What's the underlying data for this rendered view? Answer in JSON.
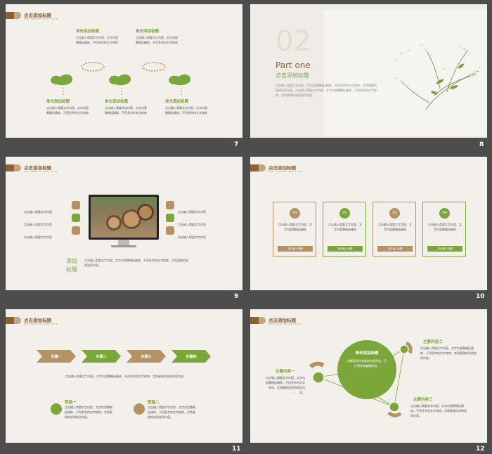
{
  "header": {
    "title": "点击添加标题",
    "subtitle": "ADD YOUR TO ADD TITLE"
  },
  "slide7": {
    "num": "7",
    "items": [
      {
        "title": "单击添加标题",
        "text": "点击输入简要文字内容，文字内容需概括精炼，不用多余的文字修饰"
      },
      {
        "title": "单击添加标题",
        "text": "点击输入简要文字内容，文字内容需概括精炼，不用多余的文字修饰"
      },
      {
        "title": "单击添加标题",
        "text": "点击输入简要文字内容，文字内容需概括精炼，不用多余的文字修饰"
      },
      {
        "title": "单击添加标题",
        "text": "点击输入简要文字内容，文字内容需概括精炼，不用多余的文字修饰"
      },
      {
        "title": "单击添加标题",
        "text": "点击输入简要文字内容，文字内容需概括精炼，不用多余的文字修饰"
      }
    ]
  },
  "slide8": {
    "num": "8",
    "big": "02",
    "part": "Part one",
    "title": "点击添加标题",
    "text": "点击输入简要文字内容，文字内容需概括精炼，不用多余的文字修饰，言简意赅的说明该项内容。点击输入简要文字内容，文字内容需概括精炼，不用多余的文字修饰，言简意赅的说明该项内容。"
  },
  "slide9": {
    "num": "9",
    "left": [
      "点击输入简要文字内容",
      "点击输入简要文字内容",
      "点击输入简要文字内容"
    ],
    "right": [
      "点击输入简要文字内容",
      "点击输入简要文字内容",
      "点击输入简要文字内容"
    ],
    "title1": "添加",
    "title2": "标题",
    "text": "点击输入简要文字内容，文字内容需概括精炼，不用多余的文字修饰，言简意赅的说明该项内容。"
  },
  "slide10": {
    "num": "10",
    "cards": [
      {
        "n": "01",
        "text": "点击输入简要文字内容，文字内容需概括精炼",
        "btn": "单击输入标题"
      },
      {
        "n": "02",
        "text": "点击输入简要文字内容，文字内容需概括精炼",
        "btn": "单击输入标题"
      },
      {
        "n": "03",
        "text": "点击输入简要文字内容，文字内容需概括精炼",
        "btn": "单击输入标题"
      },
      {
        "n": "04",
        "text": "点击输入简要文字内容，文字内容需概括精炼",
        "btn": "单击输入标题"
      }
    ]
  },
  "slide11": {
    "num": "11",
    "steps": [
      "步骤一",
      "步骤二",
      "步骤三",
      "步骤四"
    ],
    "text": "点击输入简要文字内容，文字内容需概括精炼，不用多余的文字修饰，言简意赅的说明该项内容。",
    "items": [
      {
        "title": "思路一",
        "text": "点击输入简要文字内容，文字内容需概括精炼，不用多余的文字修饰，言简意赅的说明该项内容。"
      },
      {
        "title": "思路二",
        "text": "点击输入简要文字内容，文字内容需概括精炼，不用多余的文字修饰，言简意赅的说明该项内容。"
      }
    ]
  },
  "slide12": {
    "num": "12",
    "center_title": "单击添加标题",
    "center_text": "本模板的所有素材均是原创，可任意修改编辑使用。",
    "items": [
      {
        "title": "主要内容一",
        "text": "点击输入简要文字内容，文字内容需概括精炼，不用多余的文字修饰，言简意赅的说明该项内容。"
      },
      {
        "title": "主要内容二",
        "text": "点击输入简要文字内容，文字内容需概括精炼，不用多余的文字修饰，言简意赅的说明该项内容。"
      },
      {
        "title": "主要内容三",
        "text": "点击输入简要文字内容，文字内容需概括精炼，不用多余的文字修饰，言简意赅的说明该项内容。"
      }
    ]
  },
  "colors": {
    "green": "#7aa63a",
    "brown": "#8a6238",
    "tan": "#b49264",
    "bg": "#f3efea",
    "frame": "#4d4d4d"
  }
}
